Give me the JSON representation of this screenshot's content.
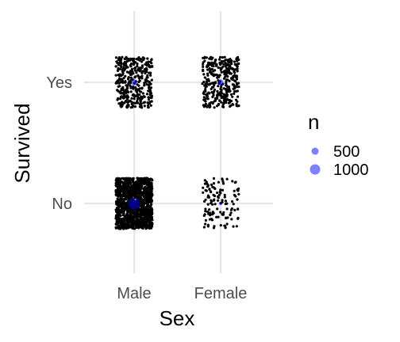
{
  "chart_data": {
    "type": "scatter",
    "subtype": "jittered categorical scatter with size-scaled count markers",
    "title": "",
    "xlabel": "Sex",
    "ylabel": "Survived",
    "x_categories": [
      "Male",
      "Female"
    ],
    "y_categories": [
      "No",
      "Yes"
    ],
    "grid": true,
    "legend": {
      "title": "n",
      "placement": "right",
      "entries": [
        {
          "label": "500",
          "value": 500
        },
        {
          "label": "1000",
          "value": 1000
        }
      ]
    },
    "cells": [
      {
        "sex": "Male",
        "survived": "No",
        "n": 1364
      },
      {
        "sex": "Male",
        "survived": "Yes",
        "n": 367
      },
      {
        "sex": "Female",
        "survived": "No",
        "n": 126
      },
      {
        "sex": "Female",
        "survived": "Yes",
        "n": 344
      }
    ],
    "colors": {
      "points": "#000000",
      "summary_marker": "#0000ff",
      "legend_marker": "#7f7fff",
      "grid": "#e6e6e6"
    }
  }
}
